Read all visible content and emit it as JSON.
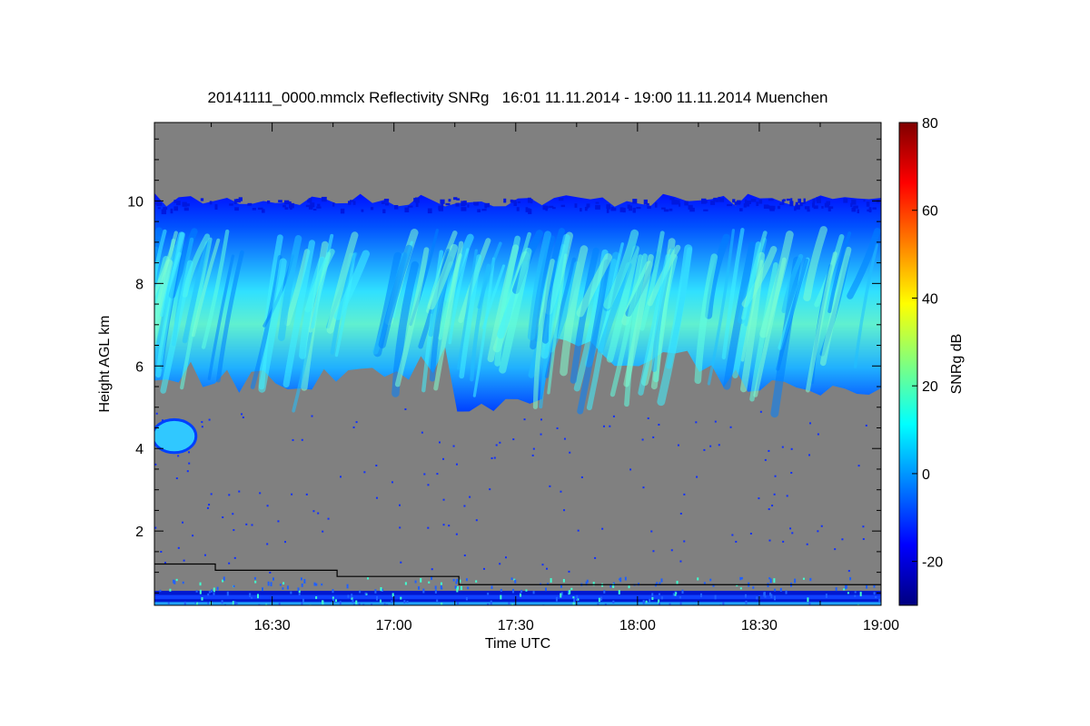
{
  "chart_data": {
    "type": "heatmap",
    "title": "20141111_0000.mmclx Reflectivity SNRg   16:01 11.11.2014 - 19:00 11.11.2014 Muenchen",
    "xlabel": "Time UTC",
    "ylabel": "Height AGL km",
    "colorbar_label": "SNRg dB",
    "x_range": [
      "16:01",
      "19:00"
    ],
    "x_ticks": [
      "16:30",
      "17:00",
      "17:30",
      "18:00",
      "18:30",
      "19:00"
    ],
    "x_tick_minutes": [
      29,
      59,
      89,
      119,
      149,
      179
    ],
    "ylim": [
      0.2,
      11.9
    ],
    "y_ticks": [
      2,
      4,
      6,
      8,
      10
    ],
    "colorbar_range": [
      -30,
      80
    ],
    "colorbar_ticks": [
      -20,
      0,
      20,
      40,
      60,
      80
    ],
    "background_color": "#808080",
    "colormap": [
      "#00007f",
      "#0000ff",
      "#007fff",
      "#00ffff",
      "#7fff7f",
      "#ffff00",
      "#ff7f00",
      "#ff0000",
      "#7f0000"
    ],
    "cloud_layers": [
      {
        "name": "upper cloud",
        "time_start_min": 0,
        "time_end_min": 179,
        "base_km": 5.0,
        "top_km": 10.3,
        "snr_db": 8
      },
      {
        "name": "low cloud patch",
        "time_start_min": 0,
        "time_end_min": 8,
        "base_km": 3.9,
        "top_km": 4.7,
        "snr_db": 10
      }
    ],
    "boundary_line_km": [
      {
        "time_start_min": 0,
        "time_end_min": 15,
        "height_km": 1.2
      },
      {
        "time_start_min": 15,
        "time_end_min": 45,
        "height_km": 1.05
      },
      {
        "time_start_min": 45,
        "time_end_min": 75,
        "height_km": 0.9
      },
      {
        "time_start_min": 75,
        "time_end_min": 179,
        "height_km": 0.7
      }
    ]
  }
}
